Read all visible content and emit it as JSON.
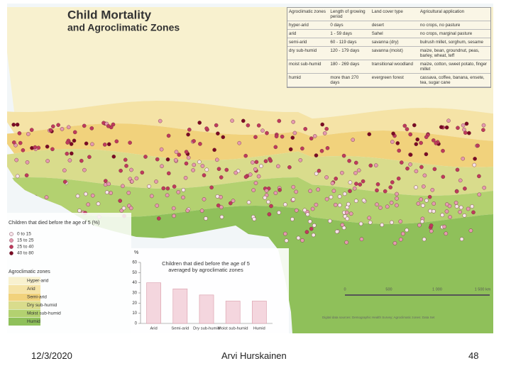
{
  "title": "Child Mortality",
  "subtitle": "and Agroclimatic Zones",
  "table": {
    "header": [
      "Agroclimatic zones",
      "Length of growing period",
      "Land cover type",
      "Agricultural application"
    ],
    "rows": [
      [
        "hyper-arid",
        "0 days",
        "desert",
        "no crops, no pasture"
      ],
      [
        "arid",
        "1 - 59 days",
        "Sahel",
        "no crops, marginal pasture"
      ],
      [
        "semi-arid",
        "60 - 119 days",
        "savanna (dry)",
        "bulrush millet, sorghum, sesame"
      ],
      [
        "dry sub-humid",
        "120 - 179 days",
        "savanna (moist)",
        "maize, bean, groundnut, peas, barley, wheat, teff"
      ],
      [
        "moist sub-humid",
        "180 - 269 days",
        "transitional woodland",
        "maize, cotton, sweet potato, finger millet"
      ],
      [
        "humid",
        "more than 270 days",
        "evergreen forest",
        "cassava, coffee, banana, ensete, tea, sugar cane"
      ]
    ]
  },
  "mortality_legend": {
    "title": "Children that died before the age of 5 (%)",
    "items": [
      {
        "label": "0 to 15",
        "color": "#f6e4ea"
      },
      {
        "label": "15 to 25",
        "color": "#e59ab0"
      },
      {
        "label": "25 to 40",
        "color": "#bf3a5c"
      },
      {
        "label": "40 to 80",
        "color": "#7a0a22"
      }
    ]
  },
  "zone_legend": {
    "title": "Agroclimatic zones",
    "items": [
      {
        "label": "Hyper-arid",
        "color": "#f8f1cf"
      },
      {
        "label": "Arid",
        "color": "#f5e3a6"
      },
      {
        "label": "Semi-arid",
        "color": "#f1d27c"
      },
      {
        "label": "Dry sub-humid",
        "color": "#d9dc8c"
      },
      {
        "label": "Moist sub-humid",
        "color": "#b3d170"
      },
      {
        "label": "Humid",
        "color": "#8fc05a"
      }
    ]
  },
  "scale_bar": {
    "labels": [
      "0",
      "500",
      "1 000",
      "1 500 km"
    ]
  },
  "source": "Digital data sources: Demographic Health Survey; Agroclimatic zones: Data Set",
  "chart_data": {
    "type": "bar",
    "title": "Children that died before the age of 5",
    "subtitle": "averaged by agroclimatic zones",
    "y_label": "%",
    "categories": [
      "Arid",
      "Semi-arid",
      "Dry sub-humid",
      "Moist sub-humid",
      "Humid"
    ],
    "values": [
      40,
      34,
      28,
      22,
      22
    ],
    "color": "#f4d6de",
    "ylim": [
      0,
      60
    ],
    "yticks": [
      0,
      10,
      20,
      30,
      40,
      50,
      60
    ]
  },
  "footer": {
    "date": "12/3/2020",
    "author": "Arvi Hurskainen",
    "page": "48"
  }
}
